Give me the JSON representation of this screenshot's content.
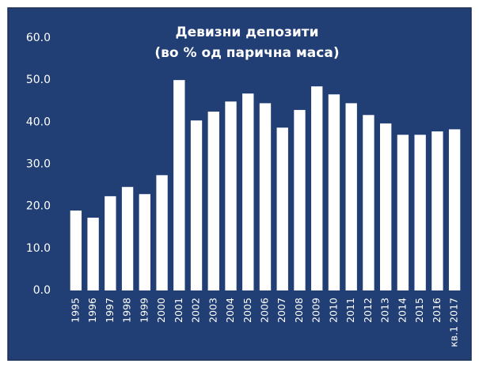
{
  "chart_data": {
    "type": "bar",
    "title": "Девизни депозити",
    "subtitle": "(во % од парична маса)",
    "categories": [
      "1995",
      "1996",
      "1997",
      "1998",
      "1999",
      "2000",
      "2001",
      "2002",
      "2003",
      "2004",
      "2005",
      "2006",
      "2007",
      "2008",
      "2009",
      "2010",
      "2011",
      "2012",
      "2013",
      "2014",
      "2015",
      "2016",
      "кв.1 2017"
    ],
    "values": [
      19.0,
      17.3,
      22.4,
      24.6,
      22.9,
      27.4,
      50.0,
      40.4,
      42.5,
      44.9,
      46.8,
      44.5,
      38.7,
      42.9,
      48.5,
      46.6,
      44.5,
      41.7,
      39.7,
      37.0,
      37.0,
      37.8,
      38.3
    ],
    "color": "#ffffff",
    "ylim": [
      0,
      60
    ],
    "yticks": [
      {
        "value": 0,
        "label": "0.0"
      },
      {
        "value": 10,
        "label": "10.0"
      },
      {
        "value": 20,
        "label": "20.0"
      },
      {
        "value": 30,
        "label": "30.0"
      },
      {
        "value": 40,
        "label": "40.0"
      },
      {
        "value": 50,
        "label": "50.0"
      },
      {
        "value": 60,
        "label": "60.0"
      }
    ],
    "grid": false
  }
}
